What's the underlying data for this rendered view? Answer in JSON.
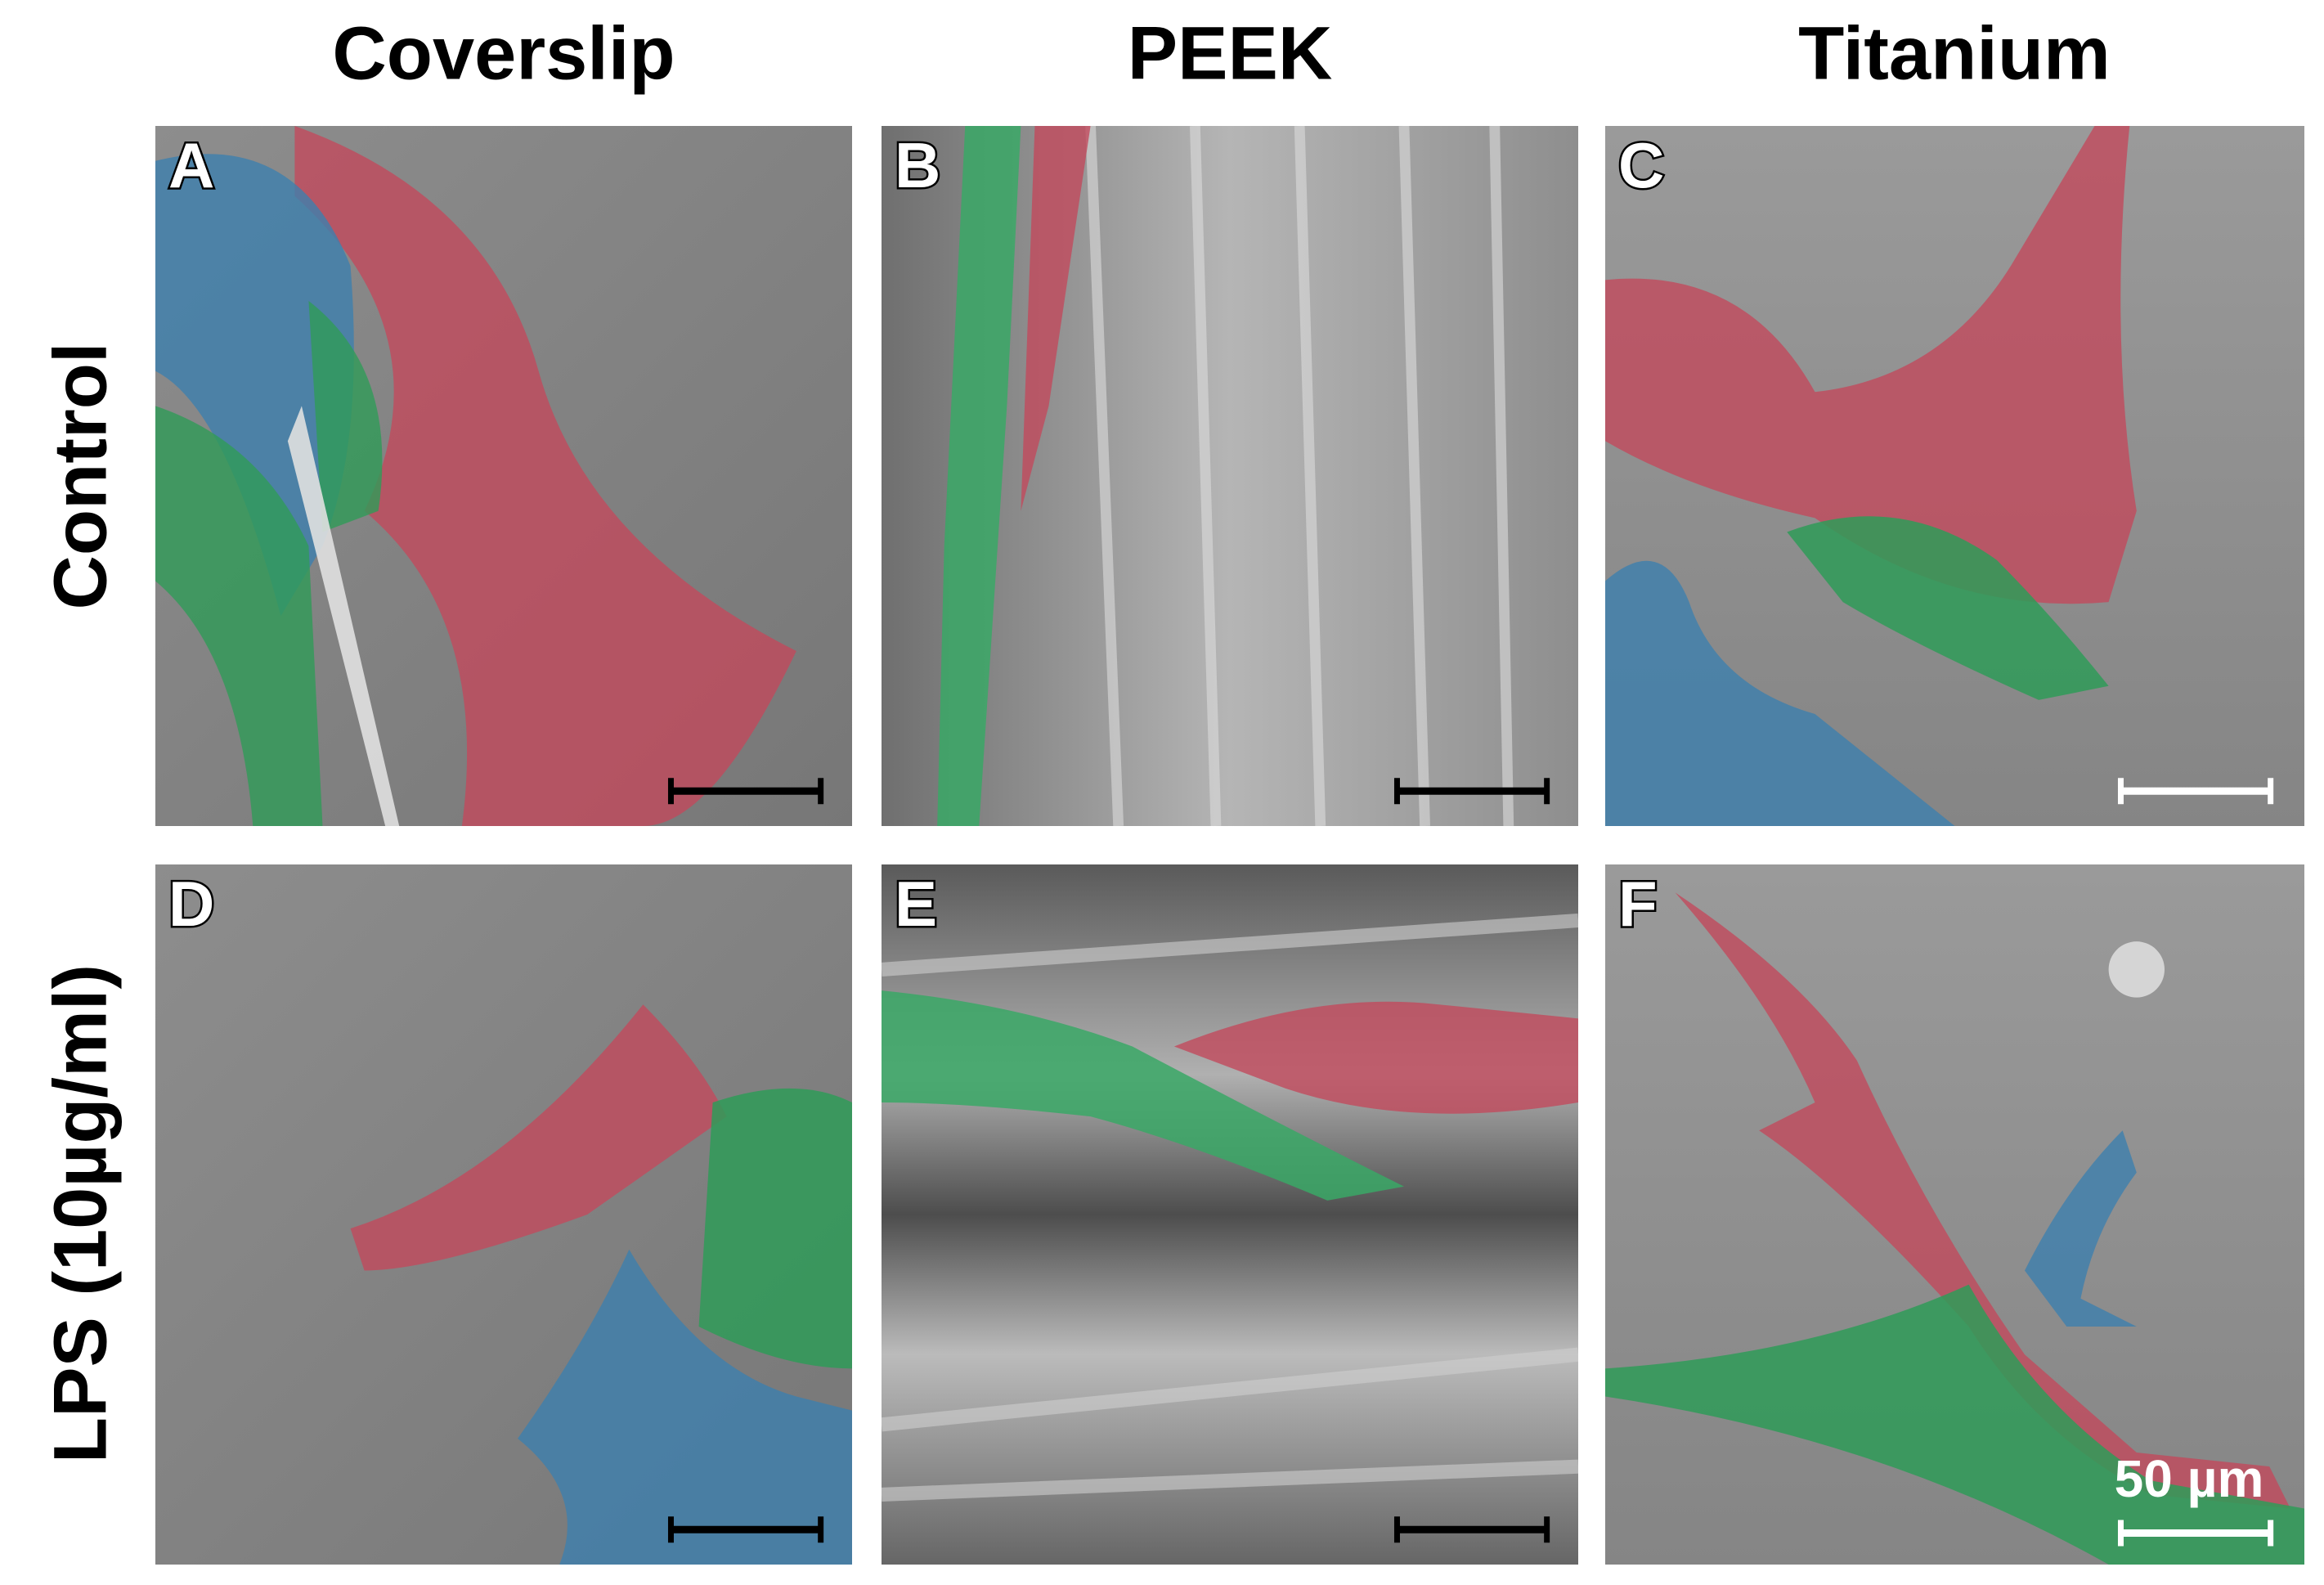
{
  "columns": [
    "Coverslip",
    "PEEK",
    "Titanium"
  ],
  "rows": [
    "Control",
    "LPS (10µg/ml)"
  ],
  "panels": [
    {
      "label": "A"
    },
    {
      "label": "B"
    },
    {
      "label": "C"
    },
    {
      "label": "D"
    },
    {
      "label": "E"
    },
    {
      "label": "F"
    }
  ],
  "scale_bar": "50 µm"
}
